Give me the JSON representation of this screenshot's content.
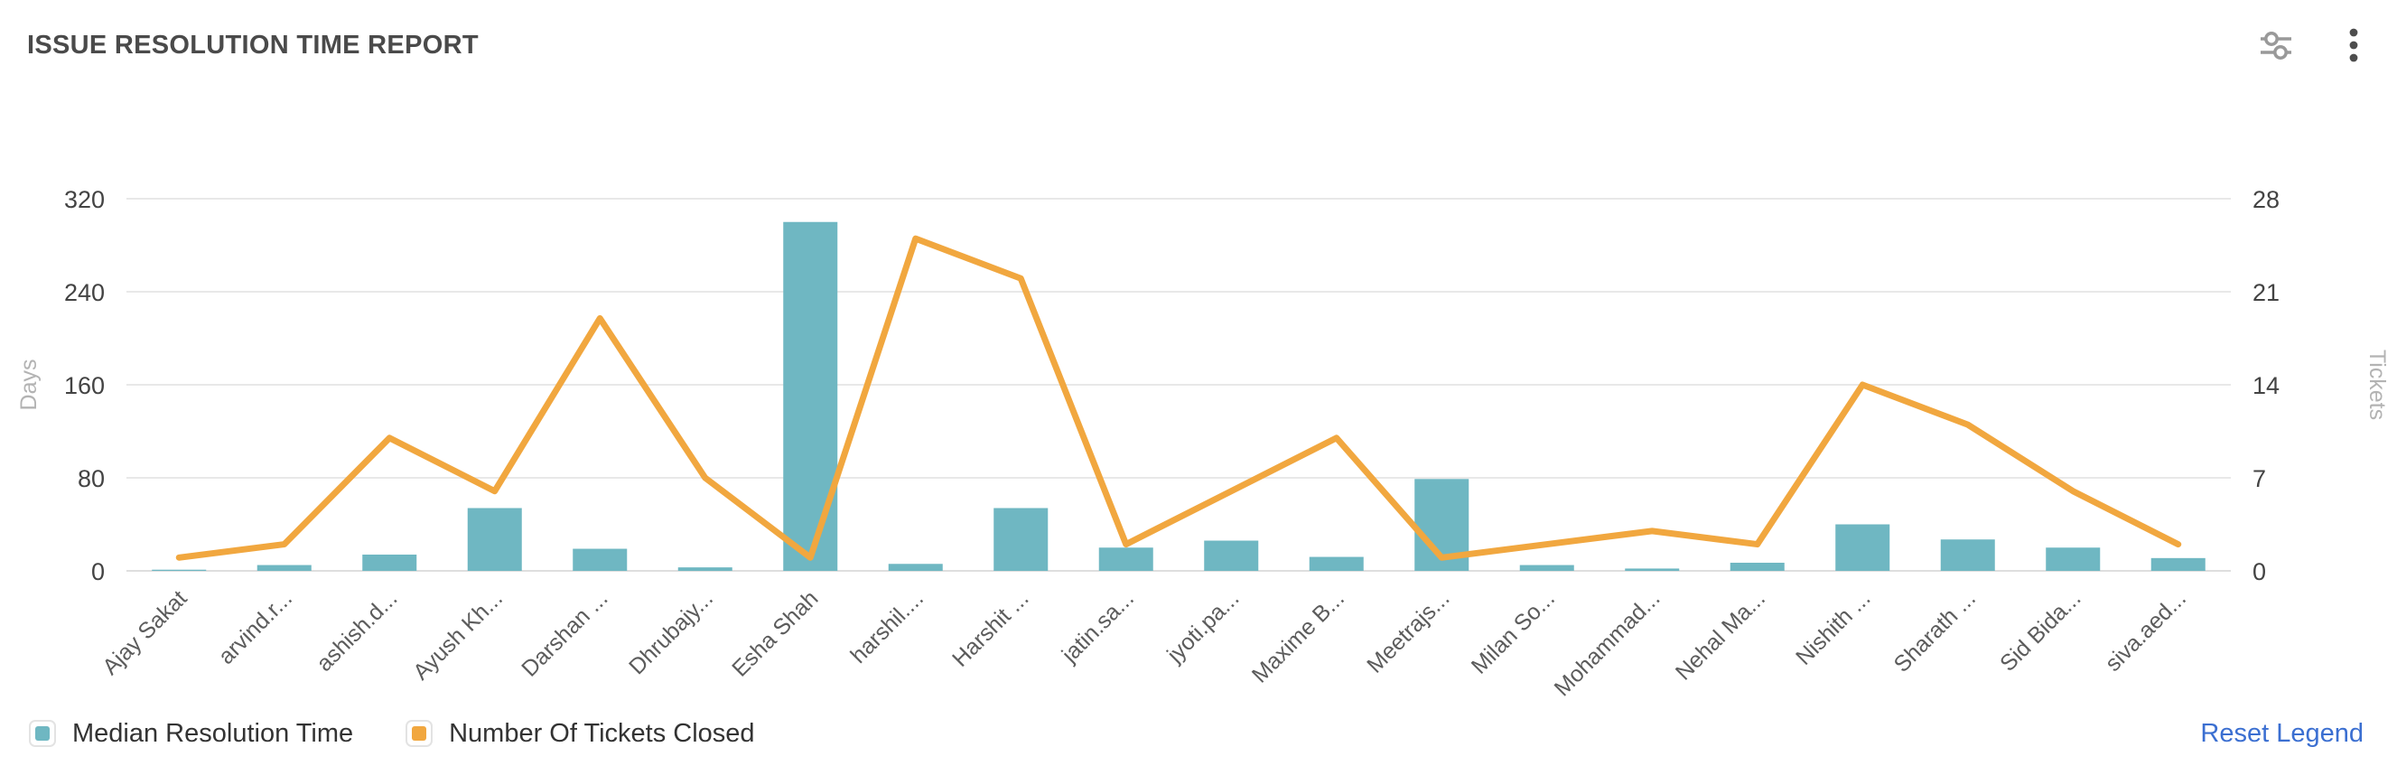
{
  "header": {
    "title": "ISSUE RESOLUTION TIME REPORT",
    "icons": [
      "sliders-icon",
      "kebab-menu-icon"
    ]
  },
  "chart_data": {
    "type": "bar+line",
    "title": "ISSUE RESOLUTION TIME REPORT",
    "categories": [
      "Ajay Sakat",
      "arvind.r...",
      "ashish.d...",
      "Ayush Kh...",
      "Darshan ...",
      "Dhrubajy...",
      "Esha Shah",
      "harshil....",
      "Harshit ...",
      "jatin.sa...",
      "jyoti.pa...",
      "Maxime B...",
      "Meetrajs...",
      "Milan So...",
      "Mohammad...",
      "Nehal Ma...",
      "Nishith ...",
      "Sharath ...",
      "Sid Bida...",
      "siva.aed..."
    ],
    "series": [
      {
        "name": "Median Resolution Time",
        "type": "bar",
        "axis": "left",
        "color": "#6FB7C2",
        "values": [
          1,
          5,
          14,
          54,
          19,
          3,
          300,
          6,
          54,
          20,
          26,
          12,
          79,
          5,
          2,
          7,
          40,
          27,
          20,
          11
        ]
      },
      {
        "name": "Number Of Tickets Closed",
        "type": "line",
        "axis": "right",
        "color": "#F1A73F",
        "values": [
          1,
          2,
          10,
          6,
          19,
          7,
          1,
          25,
          22,
          2,
          6,
          10,
          1,
          2,
          3,
          2,
          14,
          11,
          6,
          2
        ]
      }
    ],
    "left_axis": {
      "label": "Days",
      "ticks": [
        0,
        80,
        160,
        240,
        320
      ],
      "max": 320
    },
    "right_axis": {
      "label": "Tickets",
      "ticks": [
        0,
        7,
        14,
        21,
        28
      ],
      "max": 28
    },
    "grid": true,
    "x_label_rotation": -45,
    "legend_position": "bottom-left"
  },
  "style": {
    "grid_color": "#e8e8e8",
    "baseline_color": "#dedede",
    "tick_text_color": "#434343",
    "axis_name_color": "#b3b3b3",
    "x_label_color": "#5c5c5c",
    "icon_color": "#999999",
    "kebab_color": "#4d4d4d"
  },
  "footer": {
    "reset_label": "Reset Legend"
  }
}
